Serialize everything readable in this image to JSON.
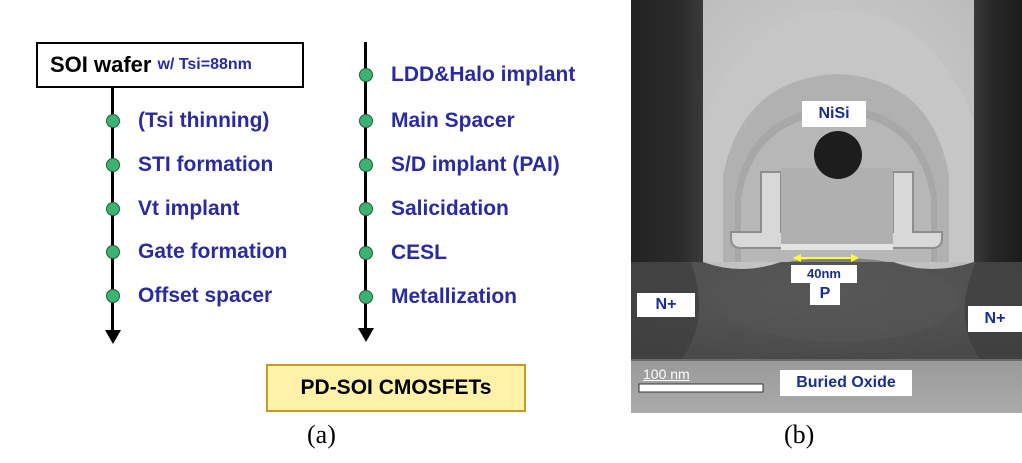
{
  "panel_a": {
    "start_box": {
      "main": "SOI wafer",
      "sub": "w/ Tsi=88nm"
    },
    "left_steps": [
      "(Tsi thinning)",
      "STI formation",
      "Vt implant",
      "Gate formation",
      "Offset spacer"
    ],
    "right_steps": [
      "LDD&Halo implant",
      "Main Spacer",
      "S/D implant (PAI)",
      "Salicidation",
      "CESL",
      "Metallization"
    ],
    "end_box": "PD-SOI CMOSFETs",
    "caption": "(a)"
  },
  "panel_b": {
    "labels": {
      "nisi": "NiSi",
      "width": "40nm",
      "p": "P",
      "n_left": "N+",
      "n_right": "N+",
      "scale": "100 nm",
      "buried_oxide": "Buried Oxide"
    },
    "caption": "(b)"
  },
  "colors": {
    "step_text": "#2b2ba0",
    "node_fill": "#3cb371",
    "end_box_fill": "#fff2a8",
    "tem_label_text": "#1a2f8a"
  }
}
